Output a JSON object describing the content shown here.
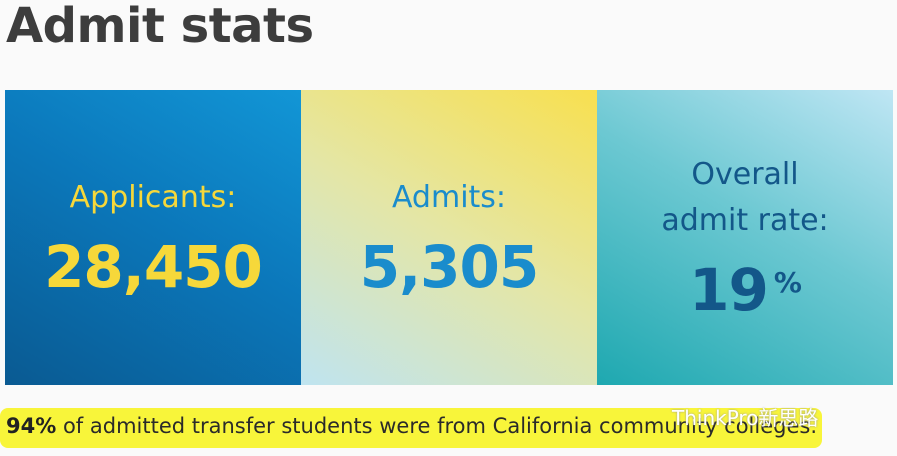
{
  "header": {
    "title": "Admit stats"
  },
  "stats": [
    {
      "label": "Applicants:",
      "value": "28,450"
    },
    {
      "label": "Admits:",
      "value": "5,305"
    },
    {
      "label": "Overall admit rate:",
      "value": "19",
      "unit": "%"
    }
  ],
  "footnote": {
    "figure": "94%",
    "text": "of admitted transfer students were from California community colleges."
  },
  "watermark": "ThinkPro新思路"
}
